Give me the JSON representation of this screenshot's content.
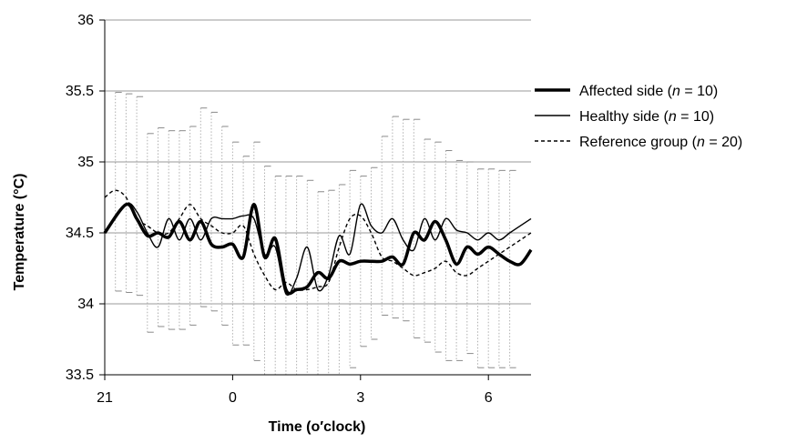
{
  "chart_data": {
    "type": "line",
    "xlabel": "Time (o′clock)",
    "ylabel": "Temperature (°C)",
    "xlim": [
      21,
      31
    ],
    "ylim": [
      33.5,
      36
    ],
    "y_ticks": [
      33.5,
      34,
      34.5,
      35,
      35.5,
      36
    ],
    "x_ticks": [
      {
        "pos": 21,
        "label": "21"
      },
      {
        "pos": 24,
        "label": "0"
      },
      {
        "pos": 27,
        "label": "3"
      },
      {
        "pos": 30,
        "label": "6"
      }
    ],
    "grid": "horizontal",
    "legend_position": "right",
    "error_bars": {
      "style": "dotted",
      "x": [
        21.25,
        21.5,
        21.75,
        22.0,
        22.25,
        22.5,
        22.75,
        23.0,
        23.25,
        23.5,
        23.75,
        24.0,
        24.25,
        24.5,
        24.75,
        25.0,
        25.25,
        25.5,
        25.75,
        26.0,
        26.25,
        26.5,
        26.75,
        27.0,
        27.25,
        27.5,
        27.75,
        28.0,
        28.25,
        28.5,
        28.75,
        29.0,
        29.25,
        29.5,
        29.75,
        30.0,
        30.25,
        30.5
      ],
      "upper": [
        35.49,
        35.48,
        35.46,
        35.2,
        35.24,
        35.22,
        35.22,
        35.25,
        35.38,
        35.35,
        35.25,
        35.14,
        35.04,
        35.14,
        34.97,
        34.9,
        34.9,
        34.9,
        34.87,
        34.79,
        34.8,
        34.84,
        34.94,
        34.9,
        34.96,
        35.18,
        35.32,
        35.3,
        35.3,
        35.16,
        35.14,
        35.08,
        35.01,
        35.0,
        34.95,
        34.95,
        34.94,
        34.94
      ],
      "lower": [
        34.09,
        34.08,
        34.06,
        33.8,
        33.84,
        33.82,
        33.82,
        33.85,
        33.98,
        33.95,
        33.85,
        33.71,
        33.71,
        33.6,
        33.5,
        33.5,
        33.5,
        33.5,
        33.5,
        33.5,
        33.5,
        33.5,
        33.55,
        33.7,
        33.75,
        33.92,
        33.9,
        33.88,
        33.76,
        33.73,
        33.66,
        33.6,
        33.6,
        33.65,
        33.55,
        33.55,
        33.55,
        33.55
      ]
    },
    "series": [
      {
        "name": "Affected side (n = 10)",
        "legend": {
          "prefix": "Affected side (",
          "n": "n",
          "suffix": " = 10)"
        },
        "style": "thick",
        "color": "#000000",
        "x": [
          21,
          21.5,
          21.75,
          22.0,
          22.25,
          22.5,
          22.75,
          23.0,
          23.25,
          23.5,
          23.75,
          24.0,
          24.25,
          24.5,
          24.75,
          25.0,
          25.25,
          25.5,
          25.75,
          26.0,
          26.25,
          26.5,
          26.75,
          27.0,
          27.25,
          27.5,
          27.75,
          28.0,
          28.25,
          28.5,
          28.75,
          29.0,
          29.25,
          29.5,
          29.75,
          30.0,
          30.25,
          30.5,
          30.75,
          31.0
        ],
        "y": [
          34.5,
          34.7,
          34.6,
          34.48,
          34.5,
          34.47,
          34.58,
          34.45,
          34.58,
          34.42,
          34.4,
          34.42,
          34.33,
          34.7,
          34.33,
          34.46,
          34.1,
          34.1,
          34.12,
          34.22,
          34.18,
          34.3,
          34.28,
          34.3,
          34.3,
          34.3,
          34.33,
          34.28,
          34.5,
          34.45,
          34.58,
          34.45,
          34.28,
          34.4,
          34.35,
          34.4,
          34.35,
          34.3,
          34.28,
          34.38
        ]
      },
      {
        "name": "Healthy side (n = 10)",
        "legend": {
          "prefix": "Healthy side (",
          "n": "n",
          "suffix": " = 10)"
        },
        "style": "thin",
        "color": "#000000",
        "x": [
          21,
          21.5,
          21.75,
          22.0,
          22.25,
          22.5,
          22.75,
          23.0,
          23.25,
          23.5,
          23.75,
          24.0,
          24.25,
          24.5,
          24.75,
          25.0,
          25.25,
          25.5,
          25.75,
          26.0,
          26.25,
          26.5,
          26.75,
          27.0,
          27.25,
          27.5,
          27.75,
          28.0,
          28.25,
          28.5,
          28.75,
          29.0,
          29.25,
          29.5,
          29.75,
          30.0,
          30.25,
          30.5,
          30.75,
          31.0
        ],
        "y": [
          34.5,
          34.7,
          34.65,
          34.5,
          34.4,
          34.6,
          34.45,
          34.6,
          34.45,
          34.6,
          34.6,
          34.6,
          34.62,
          34.6,
          34.35,
          34.4,
          34.07,
          34.18,
          34.4,
          34.1,
          34.2,
          34.48,
          34.35,
          34.7,
          34.55,
          34.5,
          34.6,
          34.45,
          34.38,
          34.6,
          34.45,
          34.6,
          34.52,
          34.5,
          34.45,
          34.5,
          34.45,
          34.5,
          34.55,
          34.6
        ]
      },
      {
        "name": "Reference group (n = 20)",
        "legend": {
          "prefix": "Reference group (",
          "n": "n",
          "suffix": " = 20)"
        },
        "style": "dashed",
        "color": "#000000",
        "x": [
          21,
          21.25,
          21.5,
          21.75,
          22.0,
          22.25,
          22.5,
          22.75,
          23.0,
          23.25,
          23.5,
          23.75,
          24.0,
          24.25,
          24.5,
          24.75,
          25.0,
          25.25,
          25.5,
          25.75,
          26.0,
          26.25,
          26.5,
          26.75,
          27.0,
          27.25,
          27.5,
          27.75,
          28.0,
          28.25,
          28.5,
          28.75,
          29.0,
          29.25,
          29.5,
          29.75,
          30.0,
          30.25,
          30.5,
          30.75,
          31.0
        ],
        "y": [
          34.75,
          34.8,
          34.75,
          34.6,
          34.55,
          34.5,
          34.5,
          34.6,
          34.7,
          34.6,
          34.55,
          34.5,
          34.5,
          34.55,
          34.35,
          34.2,
          34.1,
          34.15,
          34.1,
          34.1,
          34.12,
          34.15,
          34.4,
          34.6,
          34.62,
          34.5,
          34.33,
          34.3,
          34.25,
          34.2,
          34.22,
          34.25,
          34.3,
          34.22,
          34.2,
          34.25,
          34.3,
          34.35,
          34.4,
          34.45,
          34.5
        ]
      }
    ]
  }
}
